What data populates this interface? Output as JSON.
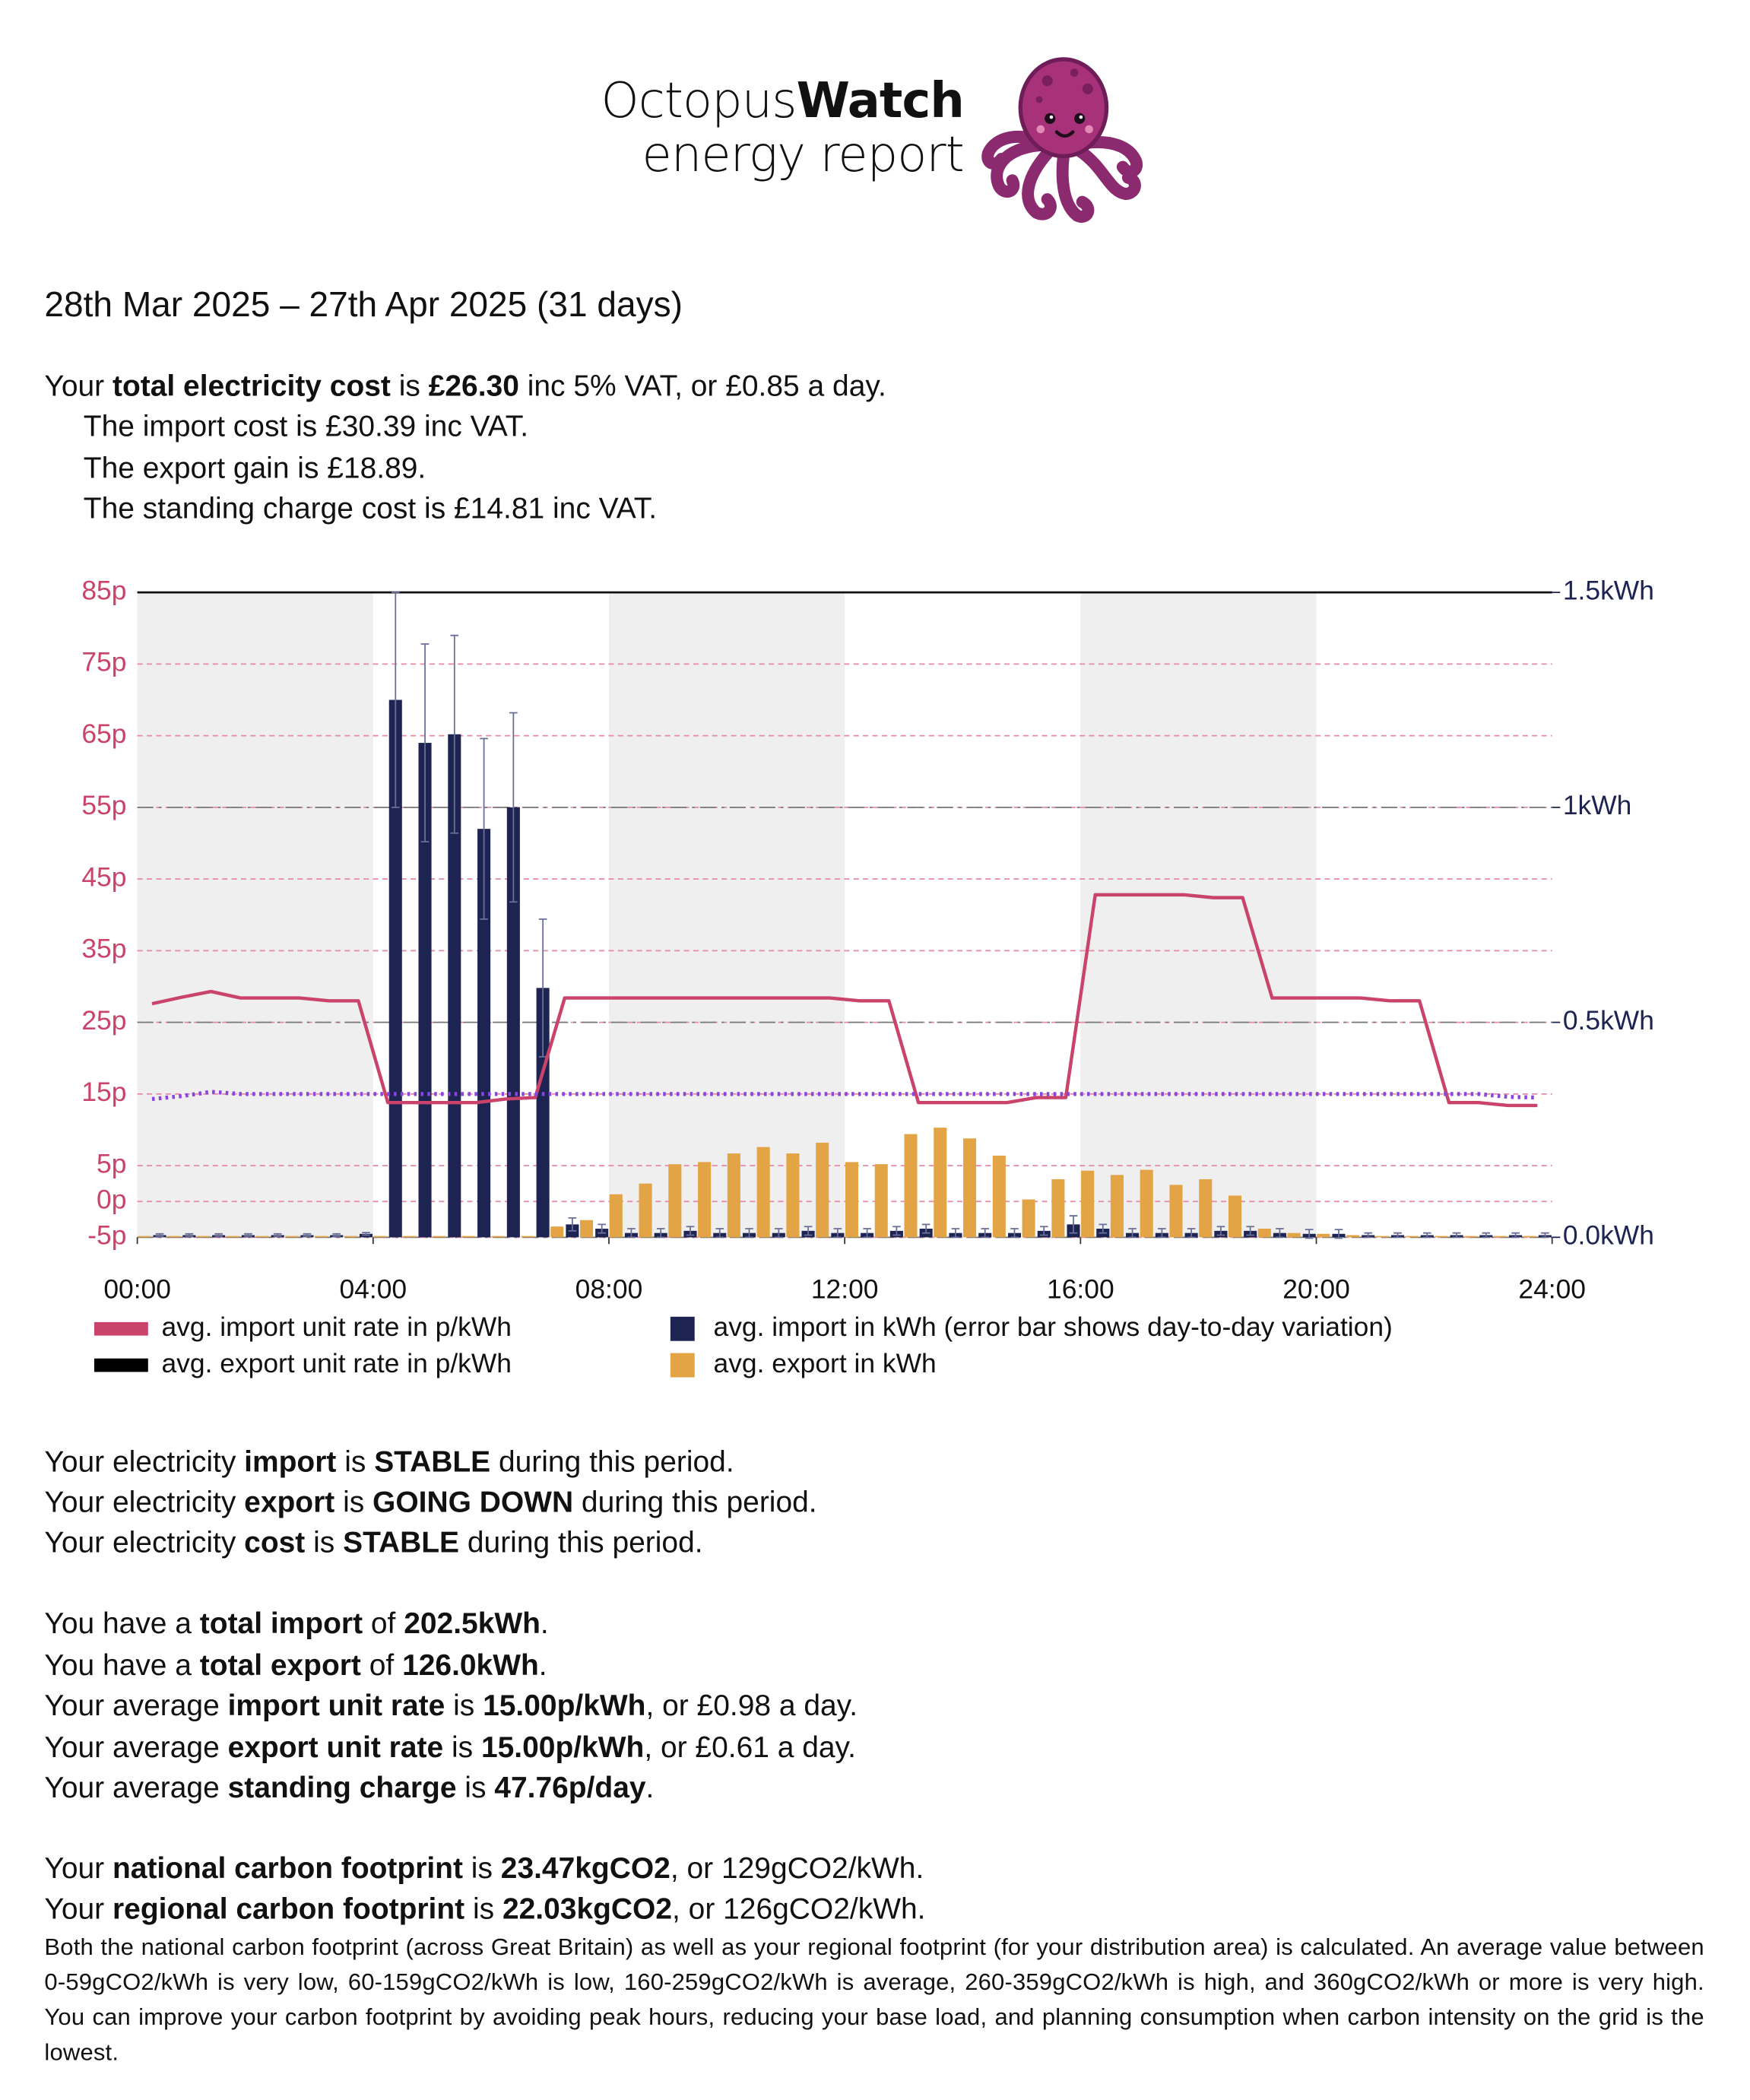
{
  "header": {
    "brand_light": "Octopus",
    "brand_bold": "Watch",
    "subtitle": "energy report"
  },
  "period": "28th Mar 2025 – 27th Apr 2025 (31 days)",
  "summary": [
    [
      "Your ",
      "total electricity cost",
      " is ",
      "£26.30",
      " inc 5% VAT, or £0.85 a day."
    ]
  ],
  "summary_details": [
    [
      "The import cost is £30.39 inc VAT."
    ],
    [
      "The export gain is £18.89."
    ],
    [
      "The standing charge cost is £14.81 inc VAT."
    ]
  ],
  "chart_data": {
    "type": "combo",
    "x": [
      0,
      0.5,
      1,
      1.5,
      2,
      2.5,
      3,
      3.5,
      4,
      4.5,
      5,
      5.5,
      6,
      6.5,
      7,
      7.5,
      8,
      8.5,
      9,
      9.5,
      10,
      10.5,
      11,
      11.5,
      12,
      12.5,
      13,
      13.5,
      14,
      14.5,
      15,
      15.5,
      16,
      16.5,
      17,
      17.5,
      18,
      18.5,
      19,
      19.5,
      20,
      20.5,
      21,
      21.5,
      22,
      22.5,
      23,
      23.5
    ],
    "xlim": [
      0,
      24
    ],
    "xticks": [
      {
        "value": 0,
        "label": "00:00"
      },
      {
        "value": 4,
        "label": "04:00"
      },
      {
        "value": 8,
        "label": "08:00"
      },
      {
        "value": 12,
        "label": "12:00"
      },
      {
        "value": 16,
        "label": "16:00"
      },
      {
        "value": 20,
        "label": "20:00"
      },
      {
        "value": 24,
        "label": "24:00"
      }
    ],
    "ylim": [
      -5,
      85
    ],
    "yticks": [
      {
        "value": 85,
        "label": "85p"
      },
      {
        "value": 75,
        "label": "75p"
      },
      {
        "value": 65,
        "label": "65p"
      },
      {
        "value": 55,
        "label": "55p"
      },
      {
        "value": 45,
        "label": "45p"
      },
      {
        "value": 35,
        "label": "35p"
      },
      {
        "value": 25,
        "label": "25p"
      },
      {
        "value": 15,
        "label": "15p"
      },
      {
        "value": 5,
        "label": "5p"
      },
      {
        "value": 0,
        "label": "0p"
      },
      {
        "value": -5,
        "label": "-5p"
      }
    ],
    "y2lim": [
      0,
      1.5
    ],
    "y2ticks": [
      {
        "value": 0,
        "label": "0.0kWh"
      },
      {
        "value": 0.5,
        "label": "0.5kWh"
      },
      {
        "value": 1,
        "label": "1kWh"
      },
      {
        "value": 1.5,
        "label": "1.5kWh"
      }
    ],
    "shaded_ranges": [
      [
        0,
        4
      ],
      [
        8,
        12
      ],
      [
        16,
        20
      ]
    ],
    "series": [
      {
        "name": "avg. import unit rate in p/kWh",
        "type": "line",
        "color": "#c9436b",
        "values": [
          27.6,
          28.5,
          29.3,
          28.4,
          28.4,
          28.4,
          28,
          28,
          13.8,
          13.8,
          13.8,
          13.8,
          14.3,
          14.5,
          28.4,
          28.4,
          28.4,
          28.4,
          28.4,
          28.4,
          28.4,
          28.4,
          28.4,
          28.4,
          28,
          28,
          13.8,
          13.8,
          13.8,
          13.8,
          14.5,
          14.5,
          42.8,
          42.8,
          42.8,
          42.8,
          42.4,
          42.4,
          28.4,
          28.4,
          28.4,
          28.4,
          28,
          28,
          13.8,
          13.8,
          13.4,
          13.4
        ]
      },
      {
        "name": "avg. export unit rate in p/kWh",
        "type": "line",
        "color": "#8a44e0",
        "legend_color": "#000000",
        "dashed": true,
        "values": [
          14.3,
          14.7,
          15.3,
          15,
          15,
          15,
          15,
          15,
          15,
          15,
          15,
          15,
          15,
          15,
          15,
          15,
          15,
          15,
          15,
          15,
          15,
          15,
          15,
          15,
          15,
          15,
          15,
          15,
          15,
          15,
          15,
          15,
          15,
          15,
          15,
          15,
          15,
          15,
          15,
          15,
          15,
          15,
          15,
          15,
          15,
          15,
          14.6,
          14.5
        ]
      },
      {
        "name": "avg. import in kWh (error bar shows day-to-day variation)",
        "type": "bar",
        "axis": "y2",
        "color": "#1d2451",
        "values": [
          0.005,
          0.005,
          0.005,
          0.005,
          0.005,
          0.005,
          0.005,
          0.008,
          1.25,
          1.15,
          1.17,
          0.95,
          1,
          0.58,
          0.03,
          0.02,
          0.01,
          0.01,
          0.015,
          0.01,
          0.01,
          0.01,
          0.015,
          0.01,
          0.01,
          0.015,
          0.02,
          0.01,
          0.01,
          0.01,
          0.015,
          0.03,
          0.02,
          0.01,
          0.01,
          0.01,
          0.015,
          0.015,
          0.01,
          0.008,
          0.008,
          0.005,
          0.005,
          0.005,
          0.005,
          0.005,
          0.005,
          0.005
        ],
        "errors": [
          0.003,
          0.003,
          0.003,
          0.003,
          0.003,
          0.003,
          0.003,
          0.003,
          0.25,
          0.23,
          0.23,
          0.21,
          0.22,
          0.16,
          0.015,
          0.01,
          0.01,
          0.01,
          0.01,
          0.01,
          0.01,
          0.01,
          0.01,
          0.01,
          0.01,
          0.01,
          0.01,
          0.01,
          0.01,
          0.01,
          0.01,
          0.02,
          0.01,
          0.01,
          0.01,
          0.01,
          0.01,
          0.01,
          0.01,
          0.01,
          0.01,
          0.005,
          0.005,
          0.005,
          0.005,
          0.005,
          0.005,
          0.005
        ]
      },
      {
        "name": "avg. export in kWh",
        "type": "bar",
        "axis": "y2",
        "color": "#e2a444",
        "values": [
          0.003,
          0.003,
          0.003,
          0.003,
          0.003,
          0.003,
          0.003,
          0.003,
          0.003,
          0.003,
          0.003,
          0.003,
          0.003,
          0.003,
          0.025,
          0.04,
          0.1,
          0.125,
          0.17,
          0.175,
          0.195,
          0.21,
          0.195,
          0.22,
          0.175,
          0.17,
          0.24,
          0.255,
          0.23,
          0.19,
          0.088,
          0.135,
          0.155,
          0.145,
          0.157,
          0.122,
          0.135,
          0.097,
          0.02,
          0.01,
          0.008,
          0.005,
          0.003,
          0.003,
          0.003,
          0.003,
          0.003,
          0.003
        ]
      }
    ]
  },
  "trends": [
    [
      "Your electricity ",
      "import",
      " is ",
      "STABLE",
      " during this period."
    ],
    [
      "Your electricity ",
      "export",
      " is ",
      "GOING DOWN",
      " during this period."
    ],
    [
      "Your electricity ",
      "cost",
      " is ",
      "STABLE",
      " during this period."
    ]
  ],
  "totals": [
    [
      "You have a ",
      "total import",
      " of ",
      "202.5kWh",
      "."
    ],
    [
      "You have a ",
      "total export",
      " of ",
      "126.0kWh",
      "."
    ],
    [
      "Your average ",
      "import unit rate",
      " is ",
      "15.00p/kWh",
      ", or £0.98 a day."
    ],
    [
      "Your average ",
      "export unit rate",
      " is ",
      "15.00p/kWh",
      ", or £0.61 a day."
    ],
    [
      "Your average ",
      "standing charge",
      " is ",
      "47.76p/day",
      "."
    ]
  ],
  "carbon": [
    [
      "Your ",
      "national carbon footprint",
      " is ",
      "23.47kgCO2",
      ", or 129gCO2/kWh."
    ],
    [
      "Your ",
      "regional carbon footprint",
      " is ",
      "22.03kgCO2",
      ", or 126gCO2/kWh."
    ]
  ],
  "carbon_note": "Both the national carbon footprint (across Great Britain) as well as your regional footprint (for your distribution area) is calculated. An average value between 0-59gCO2/kWh is very low, 60-159gCO2/kWh is low, 160-259gCO2/kWh is average, 260-359gCO2/kWh is high, and 360gCO2/kWh or more is very high. You can improve your carbon footprint by avoiding peak hours, reducing your base load, and planning consumption when carbon intensity on the grid is the lowest."
}
